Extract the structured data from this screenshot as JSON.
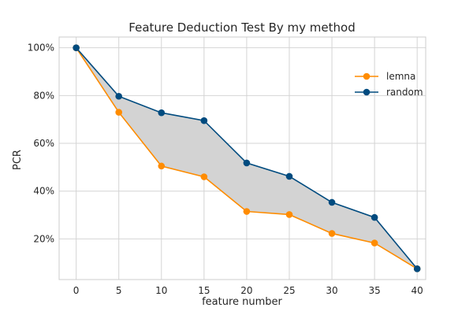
{
  "chart_data": {
    "type": "line",
    "title": "Feature Deduction Test By my method",
    "xlabel": "feature number",
    "ylabel": "PCR",
    "x": [
      0,
      5,
      10,
      15,
      20,
      25,
      30,
      35,
      40
    ],
    "xlim": [
      -2,
      41
    ],
    "ylim": [
      0.03,
      1.045
    ],
    "xticks": [
      0,
      5,
      10,
      15,
      20,
      25,
      30,
      35,
      40
    ],
    "xtick_labels": [
      "0",
      "5",
      "10",
      "15",
      "20",
      "25",
      "30",
      "35",
      "40"
    ],
    "yticks": [
      0.2,
      0.4,
      0.6,
      0.8,
      1.0
    ],
    "ytick_labels": [
      "20%",
      "40%",
      "60%",
      "80%",
      "100%"
    ],
    "grid": true,
    "legend_position": "top-right",
    "fill_between": {
      "series": [
        "random",
        "lemna"
      ],
      "color": "#d3d3d3"
    },
    "series": [
      {
        "name": "lemna",
        "color": "#ff8c00",
        "values": [
          1.0,
          0.73,
          0.505,
          0.46,
          0.315,
          0.302,
          0.223,
          0.183,
          0.075
        ]
      },
      {
        "name": "random",
        "color": "#004b7f",
        "values": [
          1.0,
          0.797,
          0.728,
          0.695,
          0.518,
          0.462,
          0.353,
          0.29,
          0.075
        ]
      }
    ]
  }
}
